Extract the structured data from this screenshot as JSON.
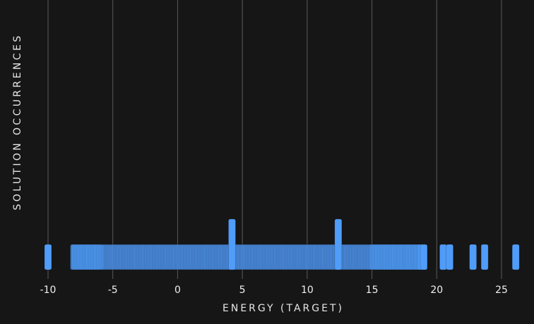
{
  "chart_data": {
    "type": "bar",
    "xlabel": "ENERGY (TARGET)",
    "ylabel": "SOLUTION OCCURRENCES",
    "xlim": [
      -11,
      26.5
    ],
    "ylim": [
      0,
      12
    ],
    "x_ticks": [
      -10,
      -5,
      0,
      5,
      10,
      15,
      20,
      25
    ],
    "grid": {
      "vertical": true,
      "horizontal": false
    },
    "bar_color": "#4f9cf9",
    "series": [
      {
        "points": [
          {
            "x": -10.0,
            "y": 1
          },
          {
            "x": 4.2,
            "y": 2
          },
          {
            "x": 12.4,
            "y": 2
          },
          {
            "x": 19.0,
            "y": 1
          },
          {
            "x": 20.5,
            "y": 1
          },
          {
            "x": 21.0,
            "y": 1
          },
          {
            "x": 22.8,
            "y": 1
          },
          {
            "x": 23.7,
            "y": 1
          },
          {
            "x": 26.1,
            "y": 1
          }
        ],
        "dense_range": [
          -8.0,
          18.8
        ],
        "dense_step": 0.1,
        "dense_value": 1
      }
    ]
  }
}
